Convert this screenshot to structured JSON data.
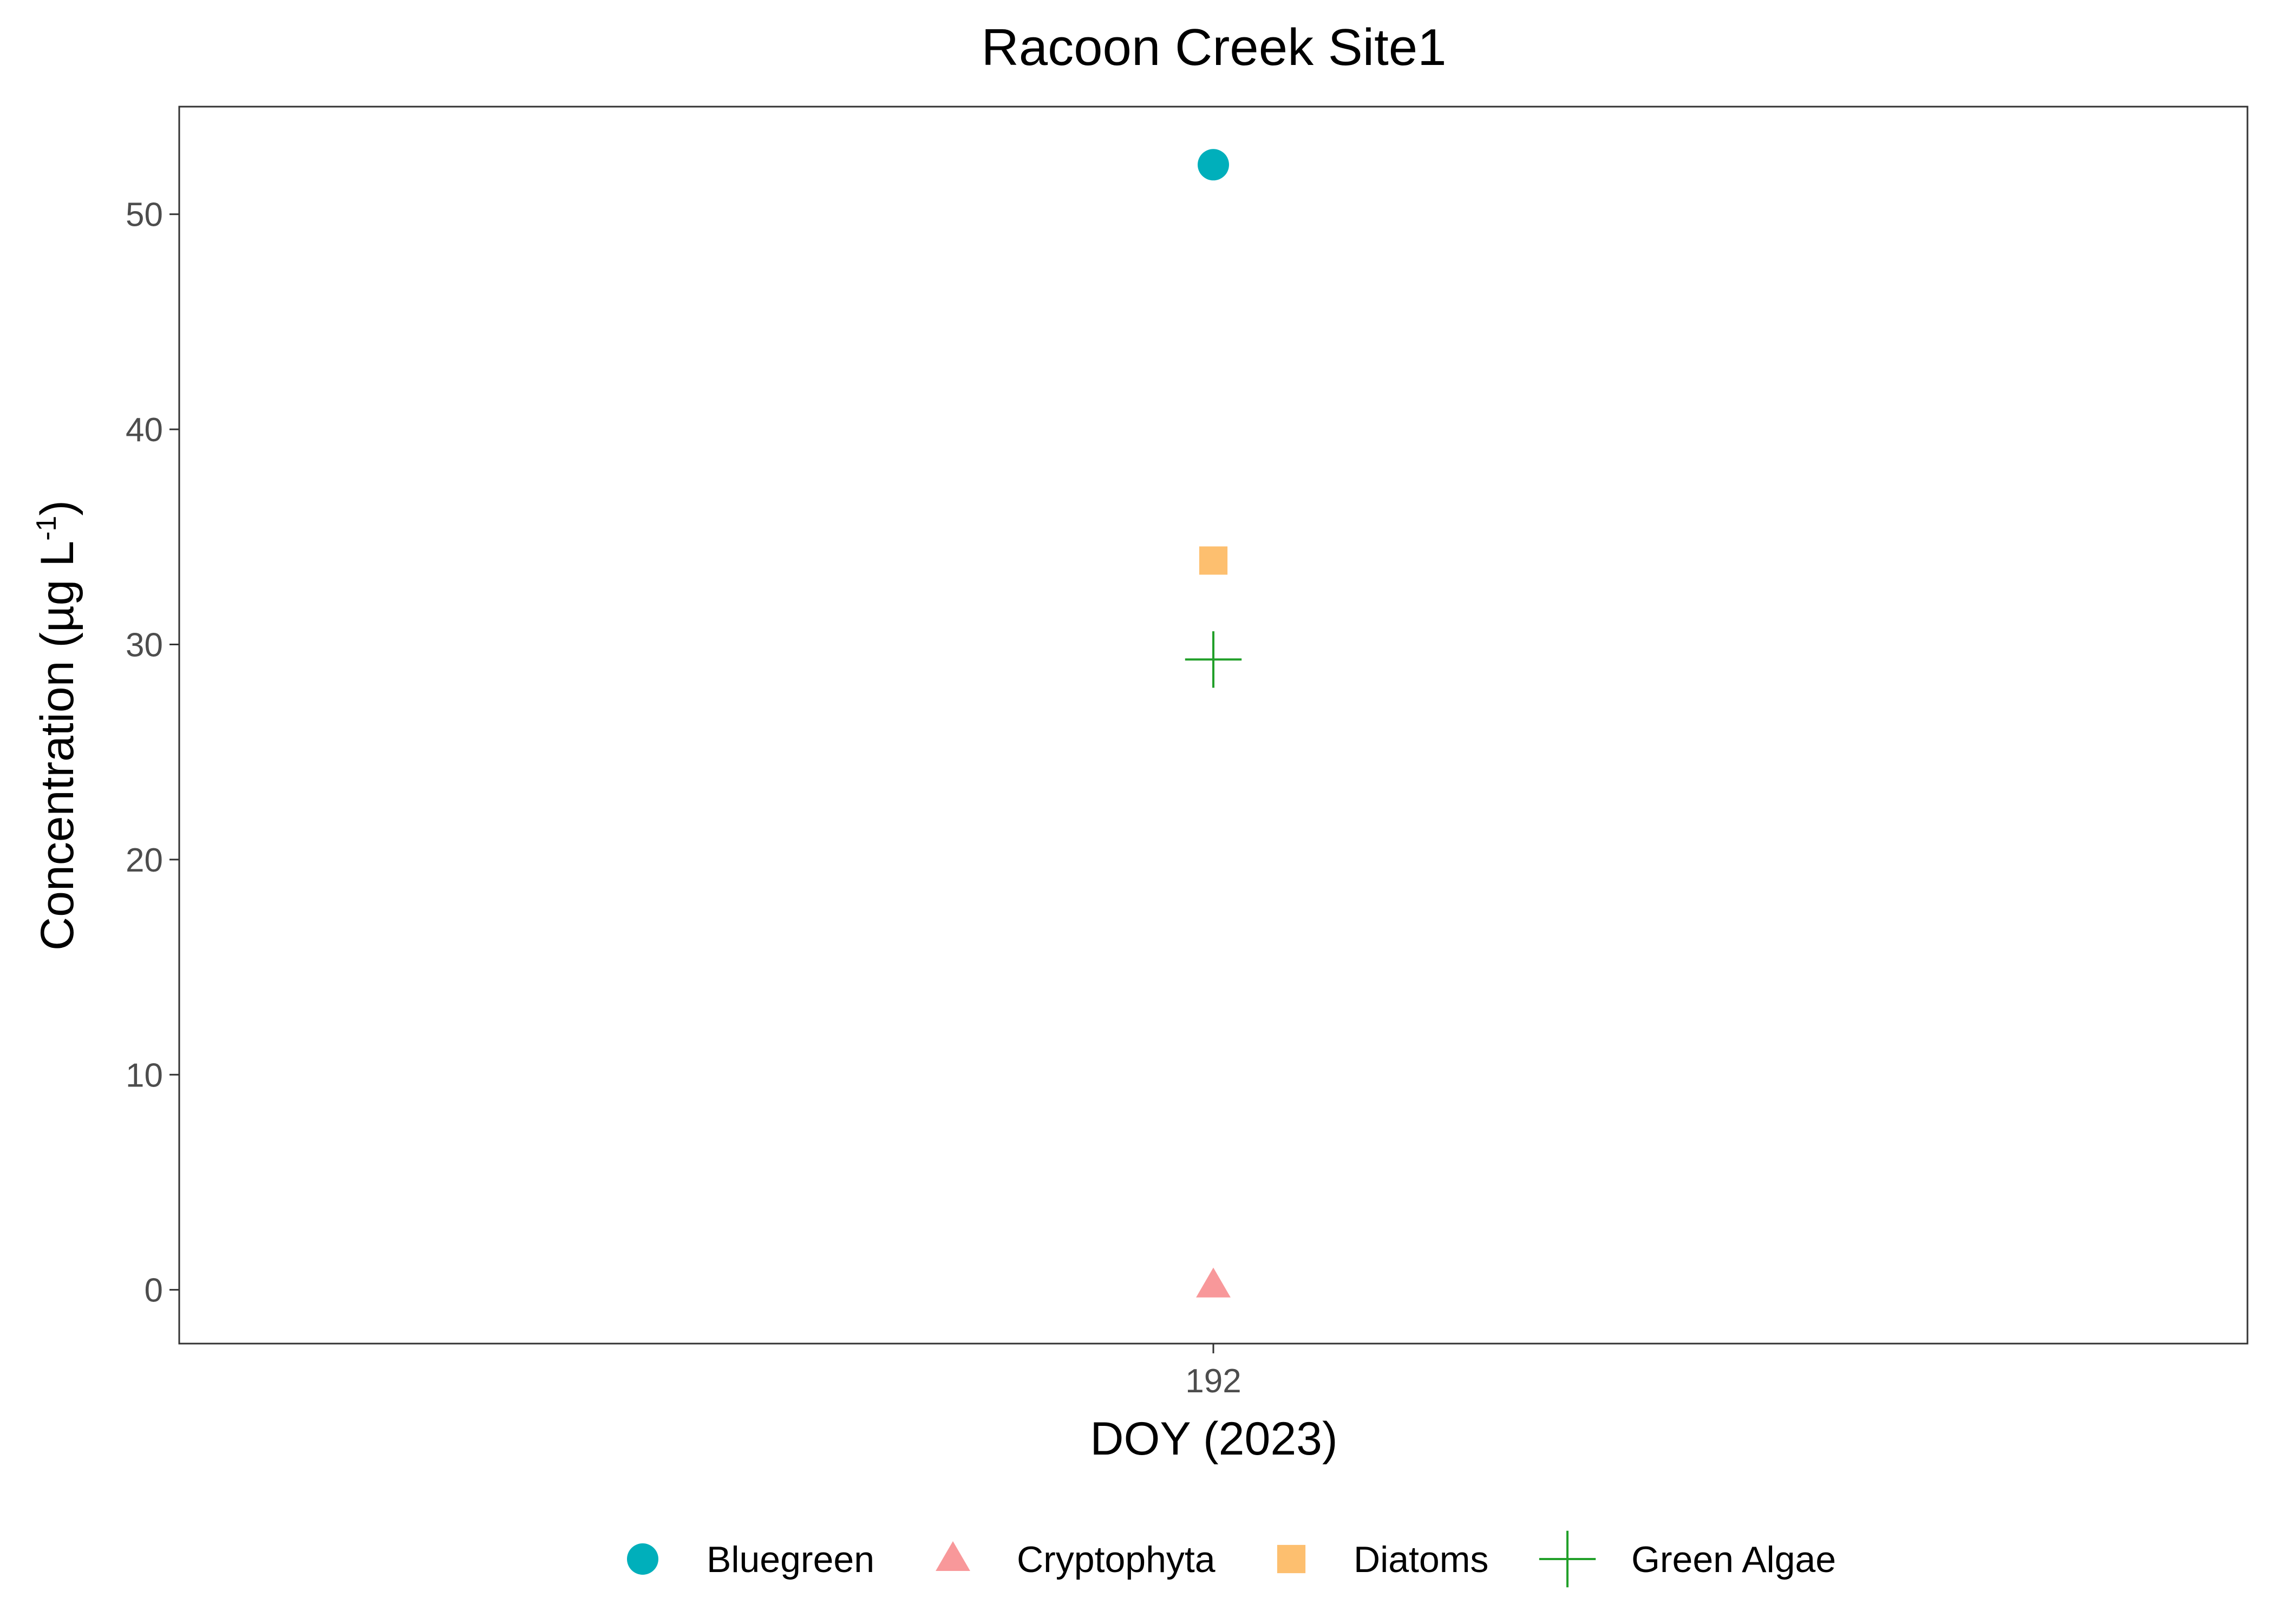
{
  "chart_data": {
    "type": "scatter",
    "title": "Racoon Creek Site1",
    "xlabel": "DOY (2023)",
    "ylabel_main": "Concentration (µg L",
    "ylabel_superscript": "-1",
    "ylabel_close": ")",
    "x_ticks": [
      "192"
    ],
    "y_ticks": [
      0,
      10,
      20,
      30,
      40,
      50
    ],
    "ylim": [
      -2.5,
      55
    ],
    "grid": false,
    "legend_position": "bottom",
    "series": [
      {
        "name": "Bluegreen",
        "x": "192",
        "y": 52.3,
        "shape": "circle",
        "color": "#00AFBB"
      },
      {
        "name": "Cryptophyta",
        "x": "192",
        "y": 0.2,
        "shape": "triangle",
        "color": "#F8989A"
      },
      {
        "name": "Diatoms",
        "x": "192",
        "y": 33.9,
        "shape": "square",
        "color": "#FDBF6F"
      },
      {
        "name": "Green Algae",
        "x": "192",
        "y": 29.3,
        "shape": "cross",
        "color": "#22A02A"
      }
    ]
  }
}
